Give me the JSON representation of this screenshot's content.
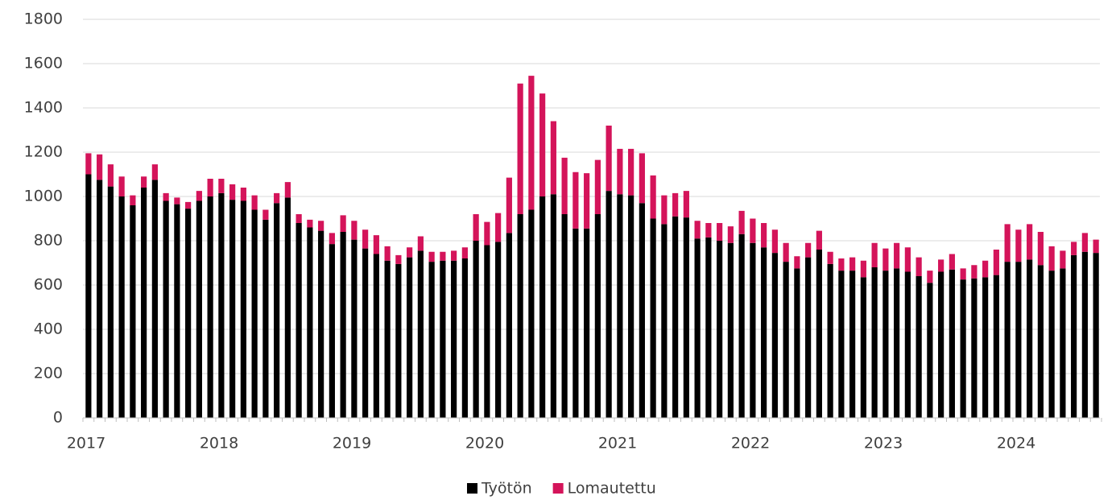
{
  "chart_data": {
    "type": "bar",
    "stacked": true,
    "categories": [
      "2017",
      null,
      null,
      null,
      null,
      null,
      null,
      null,
      null,
      null,
      null,
      null,
      "2018",
      null,
      null,
      null,
      null,
      null,
      null,
      null,
      null,
      null,
      null,
      null,
      "2019",
      null,
      null,
      null,
      null,
      null,
      null,
      null,
      null,
      null,
      null,
      null,
      "2020",
      null,
      null,
      null,
      null,
      null,
      null,
      null,
      null,
      null,
      null,
      null,
      "2021",
      null,
      null,
      null,
      null,
      null,
      null,
      null,
      null,
      null,
      null,
      null,
      "2022",
      null,
      null,
      null,
      null,
      null,
      null,
      null,
      null,
      null,
      null,
      null,
      "2023",
      null,
      null,
      null,
      null,
      null,
      null,
      null,
      null,
      null,
      null,
      null,
      "2024",
      null,
      null,
      null,
      null,
      null,
      null,
      null
    ],
    "series": [
      {
        "name": "Työtön",
        "color": "#000000",
        "values": [
          1100,
          1075,
          1045,
          1000,
          960,
          1040,
          1075,
          980,
          965,
          945,
          980,
          1000,
          1015,
          985,
          980,
          940,
          895,
          970,
          995,
          880,
          860,
          845,
          785,
          840,
          805,
          765,
          740,
          710,
          695,
          725,
          755,
          705,
          710,
          710,
          720,
          800,
          780,
          795,
          835,
          920,
          940,
          1000,
          1010,
          920,
          855,
          855,
          920,
          1025,
          1010,
          1005,
          970,
          900,
          875,
          910,
          905,
          810,
          815,
          800,
          790,
          830,
          790,
          770,
          745,
          705,
          675,
          725,
          760,
          695,
          665,
          665,
          635,
          680,
          665,
          675,
          660,
          640,
          610,
          660,
          670,
          625,
          630,
          635,
          645,
          705,
          705,
          715,
          690,
          665,
          675,
          735,
          750,
          745
        ]
      },
      {
        "name": "Lomautettu",
        "color": "#d4145a",
        "values": [
          95,
          115,
          100,
          90,
          45,
          50,
          70,
          35,
          30,
          30,
          45,
          80,
          65,
          70,
          60,
          65,
          45,
          45,
          70,
          40,
          35,
          45,
          50,
          75,
          85,
          85,
          85,
          65,
          40,
          45,
          65,
          45,
          40,
          45,
          50,
          120,
          105,
          130,
          250,
          590,
          605,
          465,
          330,
          255,
          255,
          250,
          245,
          295,
          205,
          210,
          225,
          195,
          130,
          105,
          120,
          80,
          65,
          80,
          75,
          105,
          110,
          110,
          105,
          85,
          55,
          65,
          85,
          55,
          55,
          60,
          75,
          110,
          100,
          115,
          110,
          85,
          55,
          55,
          70,
          50,
          60,
          75,
          115,
          170,
          145,
          160,
          150,
          110,
          80,
          60,
          85,
          60
        ]
      }
    ],
    "ylim": [
      0,
      1800
    ],
    "yticks": [
      0,
      200,
      400,
      600,
      800,
      1000,
      1200,
      1400,
      1600,
      1800
    ],
    "grid": true,
    "legend": "bottom"
  }
}
